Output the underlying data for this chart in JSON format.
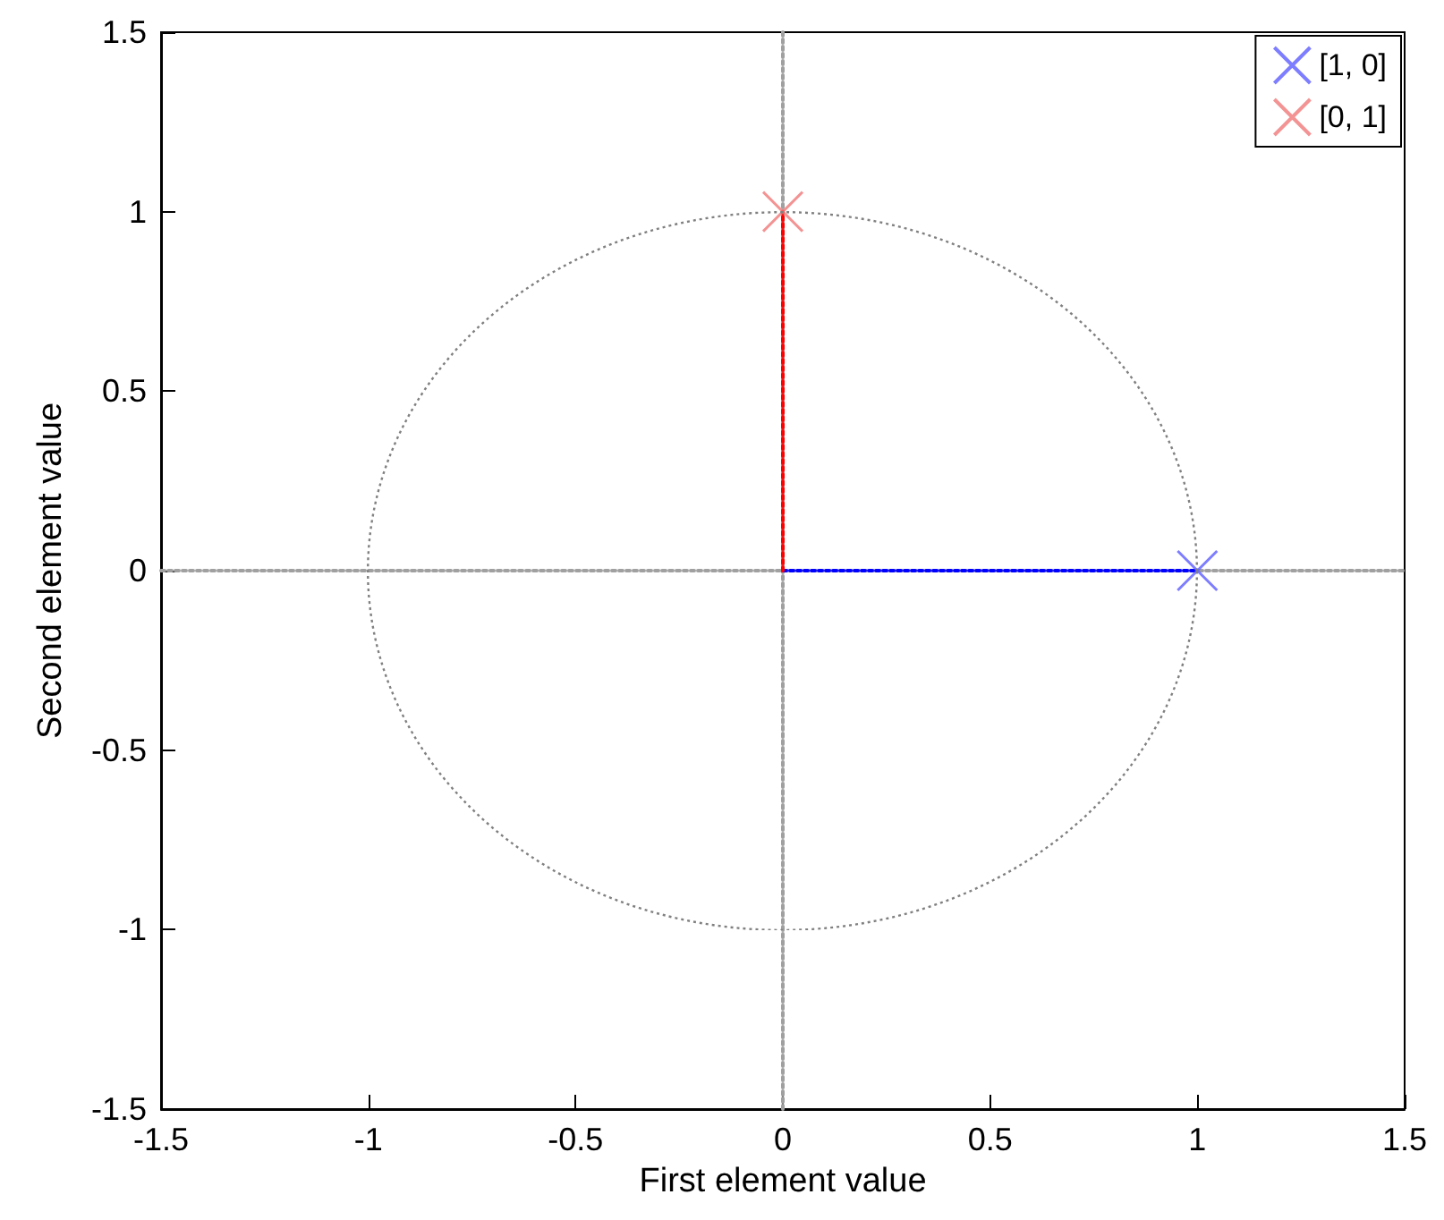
{
  "chart_data": {
    "type": "line",
    "xlabel": "First element value",
    "ylabel": "Second element value",
    "xlim": [
      -1.5,
      1.5
    ],
    "ylim": [
      -1.5,
      1.5
    ],
    "xticks": [
      -1.5,
      -1,
      -0.5,
      0,
      0.5,
      1,
      1.5
    ],
    "yticks": [
      -1.5,
      -1,
      -0.5,
      0,
      0.5,
      1,
      1.5
    ],
    "legend": "top right",
    "series": [
      {
        "color": "#a0a0a0",
        "line_style": "dotted",
        "x": [
          -1.5,
          1.5
        ],
        "values": [
          0,
          0
        ]
      },
      {
        "color": "#a0a0a0",
        "line_style": "dotted",
        "x": [
          0,
          0
        ],
        "values": [
          -1.5,
          1.5
        ]
      },
      {
        "color": "#0000ff",
        "line_style": "dotted",
        "x": [
          0,
          1
        ],
        "values": [
          0,
          0
        ]
      },
      {
        "color": "#ff0000",
        "line_style": "dotted",
        "x": [
          0,
          0
        ],
        "values": [
          0,
          1
        ]
      },
      {
        "type": "scatter",
        "name": "[1, 0]",
        "color": "#5c5cff",
        "marker": "cross",
        "x": [
          1
        ],
        "values": [
          0
        ]
      },
      {
        "type": "scatter",
        "name": "[0, 1]",
        "color": "#f07878",
        "marker": "cross",
        "x": [
          0
        ],
        "values": [
          1
        ]
      }
    ]
  }
}
